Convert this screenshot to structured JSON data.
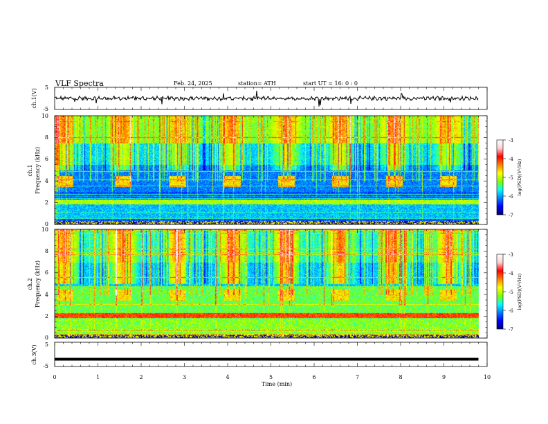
{
  "header": {
    "title": "VLF  Spectra",
    "date": "Feb. 24, 2025",
    "station": "station= ATH",
    "start_ut": "start  UT  =   16: 0  : 0"
  },
  "colors": {
    "background": "#ffffff",
    "axes": "#000000",
    "colormap": [
      "#000080",
      "#0000ff",
      "#0080ff",
      "#00ffff",
      "#80ff00",
      "#ffff00",
      "#ff8000",
      "#ff0000",
      "#ffd0d0",
      "#ffffff"
    ]
  },
  "chart_data": [
    {
      "name": "ch1-waveform",
      "type": "line",
      "ylabel": "ch.1(V)",
      "ylim": [
        -5,
        5
      ],
      "yticks": [
        "5",
        "-5"
      ],
      "xlim": [
        0,
        10
      ]
    },
    {
      "name": "ch1-spectrogram",
      "type": "heatmap",
      "ylabel_line1": "ch.1",
      "ylabel_line2": "Frequency  (kHz)",
      "ylim": [
        0,
        10
      ],
      "yticks": [
        "0",
        "2",
        "4",
        "6",
        "8",
        "10"
      ],
      "xlim": [
        0,
        10
      ],
      "colorbar": {
        "label": "log(PSD)(V²/Hz)",
        "range": [
          -7,
          -3
        ],
        "ticks": [
          "-3",
          "-4",
          "-5",
          "-6",
          "-7"
        ]
      },
      "band_centers_min": [
        0.23,
        1.57,
        2.84,
        4.1,
        5.35,
        6.6,
        7.85,
        9.1
      ],
      "band_freq_khz": [
        3.5,
        4.5
      ]
    },
    {
      "name": "ch2-spectrogram",
      "type": "heatmap",
      "ylabel_line1": "ch.2",
      "ylabel_line2": "Frequency  (kHz)",
      "ylim": [
        0,
        10
      ],
      "yticks": [
        "0",
        "2",
        "4",
        "6",
        "8",
        "10"
      ],
      "xlim": [
        0,
        10
      ],
      "colorbar": {
        "label": "log(PSD)(V²/Hz)",
        "range": [
          -7,
          -3
        ],
        "ticks": [
          "-3",
          "-4",
          "-5",
          "-6",
          "-7"
        ]
      },
      "band_centers_min": [
        0.23,
        1.57,
        2.84,
        4.1,
        5.35,
        6.6,
        7.85,
        9.1
      ],
      "band_freq_khz": [
        3.5,
        4.5
      ]
    },
    {
      "name": "ch3-waveform",
      "type": "line",
      "ylabel": "ch.3(V)",
      "ylim": [
        -5,
        5
      ],
      "yticks": [
        "5",
        "-5"
      ],
      "xlim": [
        0,
        10
      ],
      "constant_value": -2
    }
  ],
  "xaxis": {
    "label": "Time  (min)",
    "ticks": [
      "0",
      "1",
      "2",
      "3",
      "4",
      "5",
      "6",
      "7",
      "8",
      "9",
      "10"
    ]
  }
}
